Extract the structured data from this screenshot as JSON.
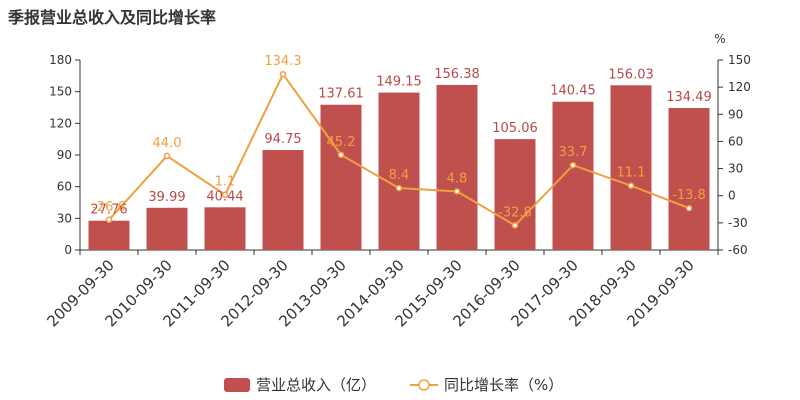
{
  "chart_data": {
    "type": "bar",
    "title": "季报营业总收入及同比增长率",
    "right_unit": "%",
    "categories": [
      "2009-09-30",
      "2010-09-30",
      "2011-09-30",
      "2012-09-30",
      "2013-09-30",
      "2014-09-30",
      "2015-09-30",
      "2016-09-30",
      "2017-09-30",
      "2018-09-30",
      "2019-09-30"
    ],
    "series": [
      {
        "name": "营业总收入（亿）",
        "type": "bar",
        "axis": "left",
        "color": "#c0504d",
        "values": [
          27.76,
          39.99,
          40.44,
          94.75,
          137.61,
          149.15,
          156.38,
          105.06,
          140.45,
          156.03,
          134.49
        ],
        "labels": [
          "27.76",
          "39.99",
          "40.44",
          "94.75",
          "137.61",
          "149.15",
          "156.38",
          "105.06",
          "140.45",
          "156.03",
          "134.49"
        ]
      },
      {
        "name": "同比增长率（%）",
        "type": "line",
        "axis": "right",
        "color": "#f0a040",
        "values": [
          -26.6,
          44.0,
          1.1,
          134.3,
          45.2,
          8.4,
          4.8,
          -32.8,
          33.7,
          11.1,
          -13.8
        ],
        "labels": [
          "-26.6",
          "44.0",
          "1.1",
          "134.3",
          "45.2",
          "8.4",
          "4.8",
          "-32.8",
          "33.7",
          "11.1",
          "-13.8"
        ]
      }
    ],
    "left_axis": {
      "min": 0,
      "max": 180,
      "ticks": [
        0,
        30,
        60,
        90,
        120,
        150,
        180
      ]
    },
    "right_axis": {
      "min": -60,
      "max": 150,
      "ticks": [
        -60,
        -30,
        0,
        30,
        60,
        90,
        120,
        150
      ]
    },
    "grid": false,
    "legend_position": "bottom-center"
  }
}
